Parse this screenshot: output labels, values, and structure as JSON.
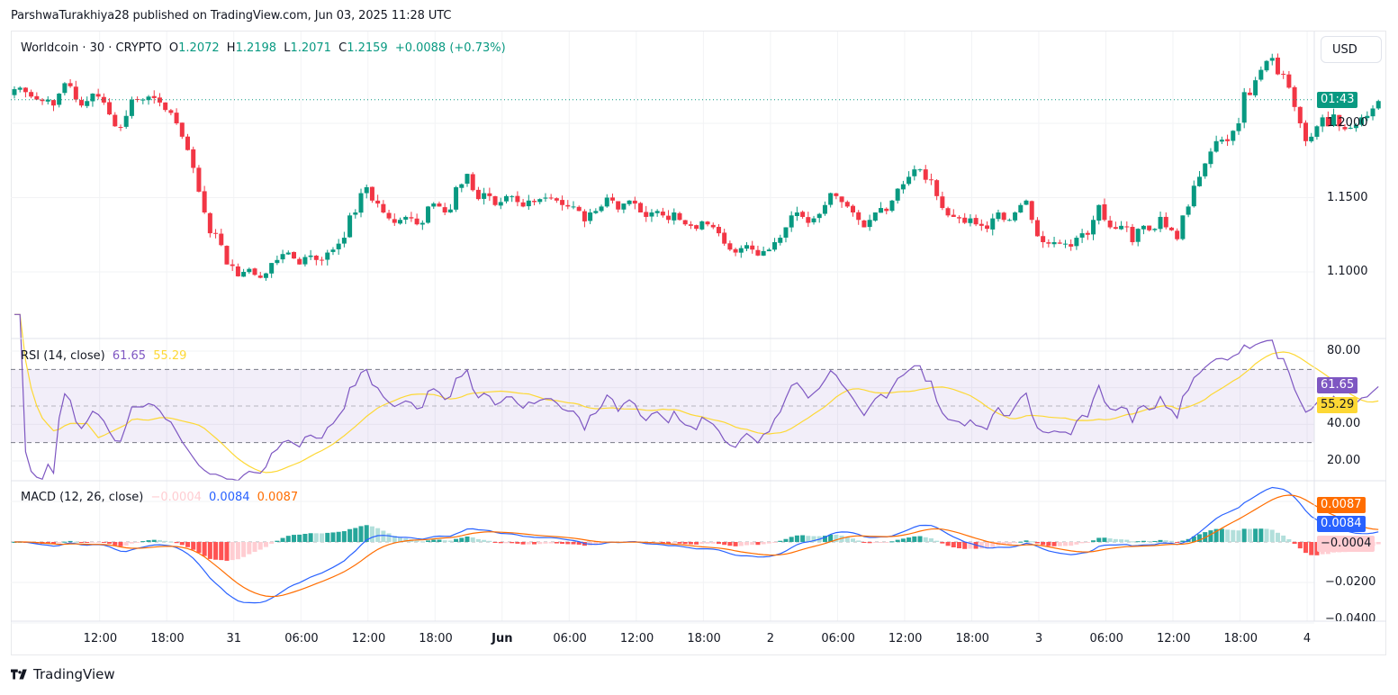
{
  "header": {
    "published": "ParshwaTurakhiya28 published on TradingView.com, Jun 03, 2025 11:28 UTC"
  },
  "legend": {
    "symbol": "Worldcoin · 30 · CRYPTO",
    "o_label": "O",
    "o_value": "1.2072",
    "h_label": "H",
    "h_value": "1.2198",
    "l_label": "L",
    "l_value": "1.2071",
    "c_label": "C",
    "c_value": "1.2159",
    "change": "+0.0088 (+0.73%)"
  },
  "currency_button": "USD",
  "price_tag": {
    "countdown": "01:43"
  },
  "rsi": {
    "title": "RSI (14, close)",
    "value": "61.65",
    "ma_value": "55.29",
    "ticks": [
      "80.00",
      "40.00",
      "20.00"
    ]
  },
  "macd": {
    "title": "MACD (12, 26, close)",
    "hist_value": "−0.0004",
    "macd_value": "0.0084",
    "signal_value": "0.0087",
    "ticks": [
      "−0.0200",
      "−0.0400"
    ]
  },
  "footer": {
    "brand": "TradingView"
  },
  "colors": {
    "up": "#089981",
    "down": "#f23645",
    "rsi": "#7e57c2",
    "rsi_ma": "#fdd835",
    "macd": "#2962ff",
    "signal": "#ff6d00",
    "hist_up_strong": "#26a69a",
    "hist_up_weak": "#b2dfdb",
    "hist_down_strong": "#ff5252",
    "hist_down_weak": "#ffcdd2",
    "rsi_band": "#7e57c2"
  },
  "chart_data": {
    "type": "candlestick",
    "title": "Worldcoin · 30 · CRYPTO",
    "interval_minutes": 30,
    "price_ticks": [
      "1.2000",
      "1.1500",
      "1.1000"
    ],
    "price_ylim": [
      1.055,
      1.26
    ],
    "last_price": 1.2159,
    "x_ticks": [
      {
        "label": "12:00",
        "bar": 8,
        "bold": false
      },
      {
        "label": "18:00",
        "bar": 20,
        "bold": false
      },
      {
        "label": "31",
        "bar": 32,
        "bold": false
      },
      {
        "label": "06:00",
        "bar": 44,
        "bold": false
      },
      {
        "label": "12:00",
        "bar": 56,
        "bold": false
      },
      {
        "label": "18:00",
        "bar": 68,
        "bold": false
      },
      {
        "label": "Jun",
        "bar": 80,
        "bold": true
      },
      {
        "label": "06:00",
        "bar": 92,
        "bold": false
      },
      {
        "label": "12:00",
        "bar": 104,
        "bold": false
      },
      {
        "label": "18:00",
        "bar": 116,
        "bold": false
      },
      {
        "label": "2",
        "bar": 128,
        "bold": false
      },
      {
        "label": "06:00",
        "bar": 140,
        "bold": false
      },
      {
        "label": "12:00",
        "bar": 152,
        "bold": false
      },
      {
        "label": "18:00",
        "bar": 164,
        "bold": false
      },
      {
        "label": "3",
        "bar": 176,
        "bold": false
      },
      {
        "label": "06:00",
        "bar": 188,
        "bold": false
      },
      {
        "label": "12:00",
        "bar": 200,
        "bold": false
      },
      {
        "label": "18:00",
        "bar": 212,
        "bold": false
      },
      {
        "label": "4",
        "bar": 224,
        "bold": false
      }
    ],
    "closes": [
      1.223,
      1.224,
      1.221,
      1.218,
      1.216,
      1.215,
      1.216,
      1.212,
      1.22,
      1.227,
      1.225,
      1.216,
      1.212,
      1.215,
      1.22,
      1.218,
      1.214,
      1.206,
      1.198,
      1.1975,
      1.205,
      1.216,
      1.216,
      1.216,
      1.218,
      1.217,
      1.214,
      1.209,
      1.207,
      1.2,
      1.191,
      1.182,
      1.17,
      1.154,
      1.14,
      1.126,
      1.126,
      1.118,
      1.105,
      1.104,
      1.097,
      1.1,
      1.102,
      1.098,
      1.096,
      1.099,
      1.106,
      1.108,
      1.112,
      1.113,
      1.109,
      1.105,
      1.11,
      1.111,
      1.108,
      1.108,
      1.113,
      1.115,
      1.119,
      1.123,
      1.138,
      1.14,
      1.153,
      1.157,
      1.148,
      1.146,
      1.14,
      1.136,
      1.133,
      1.135,
      1.137,
      1.136,
      1.132,
      1.133,
      1.144,
      1.146,
      1.144,
      1.14,
      1.142,
      1.157,
      1.159,
      1.166,
      1.155,
      1.149,
      1.153,
      1.151,
      1.145,
      1.147,
      1.151,
      1.151,
      1.147,
      1.144,
      1.148,
      1.147,
      1.149,
      1.15,
      1.15,
      1.148,
      1.145,
      1.144,
      1.144,
      1.141,
      1.134,
      1.14,
      1.141,
      1.144,
      1.15,
      1.148,
      1.142,
      1.146,
      1.148,
      1.146,
      1.14,
      1.137,
      1.14,
      1.141,
      1.138,
      1.135,
      1.14,
      1.135,
      1.132,
      1.131,
      1.129,
      1.134,
      1.132,
      1.13,
      1.126,
      1.119,
      1.115,
      1.113,
      1.116,
      1.118,
      1.115,
      1.111,
      1.114,
      1.115,
      1.12,
      1.123,
      1.13,
      1.138,
      1.14,
      1.137,
      1.133,
      1.136,
      1.139,
      1.145,
      1.153,
      1.151,
      1.147,
      1.144,
      1.14,
      1.135,
      1.13,
      1.135,
      1.14,
      1.143,
      1.141,
      1.148,
      1.156,
      1.159,
      1.164,
      1.169,
      1.169,
      1.162,
      1.162,
      1.151,
      1.143,
      1.138,
      1.137,
      1.136,
      1.133,
      1.136,
      1.132,
      1.131,
      1.129,
      1.136,
      1.14,
      1.135,
      1.135,
      1.14,
      1.145,
      1.148,
      1.135,
      1.124,
      1.12,
      1.119,
      1.12,
      1.119,
      1.119,
      1.117,
      1.123,
      1.126,
      1.125,
      1.135,
      1.145,
      1.135,
      1.13,
      1.129,
      1.131,
      1.13,
      1.12,
      1.129,
      1.131,
      1.128,
      1.129,
      1.137,
      1.13,
      1.128,
      1.122,
      1.138,
      1.144,
      1.158,
      1.164,
      1.173,
      1.181,
      1.188,
      1.189,
      1.188,
      1.195,
      1.2,
      1.221,
      1.219,
      1.229,
      1.236,
      1.242,
      1.244,
      1.233,
      1.233,
      1.224,
      1.211,
      1.2,
      1.188,
      1.191,
      1.198,
      1.204,
      1.198,
      1.206,
      1.198,
      1.196,
      1.197,
      1.199,
      1.204,
      1.205,
      1.21,
      1.215
    ],
    "series_note": "approximate OHLC reconstructed from candle shapes; 30-minute bars"
  }
}
